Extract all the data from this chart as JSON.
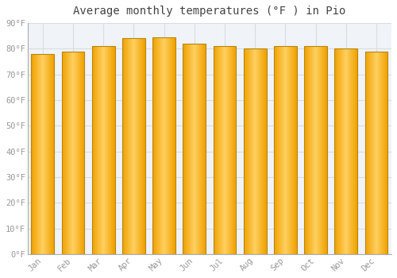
{
  "title": "Average monthly temperatures (°F ) in Pio",
  "months": [
    "Jan",
    "Feb",
    "Mar",
    "Apr",
    "May",
    "Jun",
    "Jul",
    "Aug",
    "Sep",
    "Oct",
    "Nov",
    "Dec"
  ],
  "values": [
    78,
    79,
    81,
    84,
    84.5,
    82,
    81,
    80,
    81,
    81,
    80,
    79
  ],
  "bar_color_center": "#FFD060",
  "bar_color_edge": "#F0A000",
  "bar_outline_color": "#B8860B",
  "ylim": [
    0,
    90
  ],
  "yticks": [
    0,
    10,
    20,
    30,
    40,
    50,
    60,
    70,
    80,
    90
  ],
  "ytick_labels": [
    "0°F",
    "10°F",
    "20°F",
    "30°F",
    "40°F",
    "50°F",
    "60°F",
    "70°F",
    "80°F",
    "90°F"
  ],
  "background_color": "#ffffff",
  "plot_bg_color": "#f0f4f8",
  "grid_color": "#d8dde2",
  "font_color": "#999999",
  "title_font_color": "#444444",
  "font_family": "monospace",
  "bar_width": 0.75
}
